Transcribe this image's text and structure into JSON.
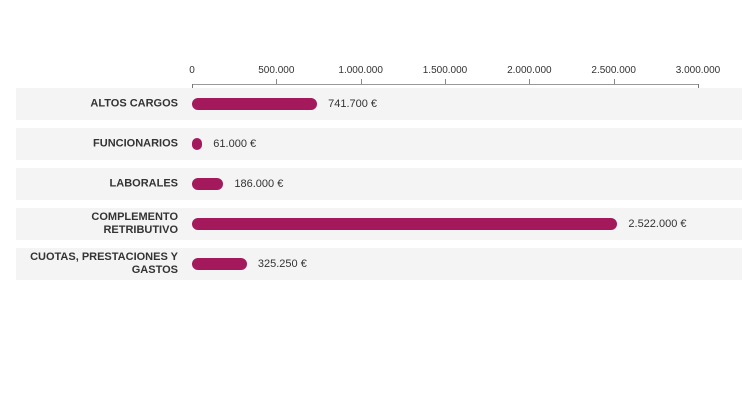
{
  "chart_data": {
    "type": "bar",
    "orientation": "horizontal",
    "title": "",
    "categories": [
      "ALTOS CARGOS",
      "FUNCIONARIOS",
      "LABORALES",
      "COMPLEMENTO RETRIBUTIVO",
      "CUOTAS, PRESTACIONES Y GASTOS"
    ],
    "values": [
      741700,
      61000,
      186000,
      2522000,
      325250
    ],
    "value_labels": [
      "741.700 €",
      "61.000 €",
      "186.000 €",
      "2.522.000 €",
      "325.250 €"
    ],
    "currency_symbol": "€",
    "xlim": [
      0,
      3000000
    ],
    "x_ticks": [
      0,
      500000,
      1000000,
      1500000,
      2000000,
      2500000,
      3000000
    ],
    "x_tick_labels": [
      "0",
      "500.000",
      "1.000.000",
      "1.500.000",
      "2.000.000",
      "2.500.000",
      "3.000.000"
    ],
    "bar_color": "#a3195b",
    "row_background": "#f4f4f4",
    "axis_color": "#999999",
    "text_color": "#333333",
    "grid": false,
    "legend": false
  }
}
